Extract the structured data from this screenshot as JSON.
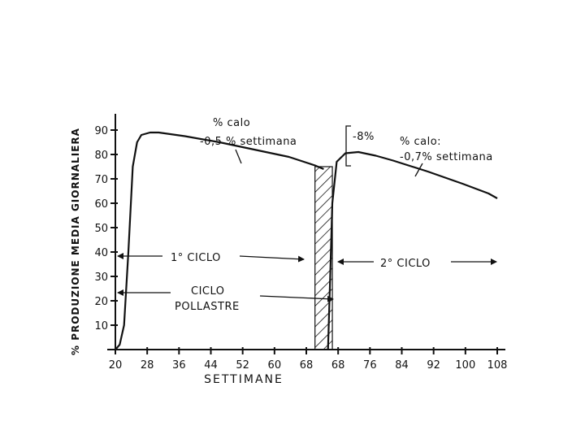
{
  "chart_data": {
    "type": "line",
    "title": "",
    "xlabel": "SETTIMANE",
    "ylabel": "% PRODUZIONE MEDIA GIORNALIERA",
    "xlim": [
      20,
      108
    ],
    "ylim": [
      0,
      100
    ],
    "x_ticks": [
      "20",
      "28",
      "36",
      "44",
      "52",
      "60",
      "68",
      "68",
      "76",
      "84",
      "92",
      "100",
      "108"
    ],
    "y_ticks": [
      "10",
      "20",
      "30",
      "40",
      "50",
      "60",
      "70",
      "80",
      "90"
    ],
    "series": [
      {
        "points": [
          [
            20,
            0
          ],
          [
            21,
            2
          ],
          [
            22,
            10
          ],
          [
            23,
            40
          ],
          [
            24,
            75
          ],
          [
            25,
            85
          ],
          [
            26,
            88
          ],
          [
            28,
            89
          ],
          [
            30,
            89
          ],
          [
            36,
            87.5
          ],
          [
            44,
            85
          ],
          [
            52,
            82
          ],
          [
            60,
            79
          ],
          [
            66,
            75.5
          ],
          [
            68,
            74
          ]
        ]
      },
      {
        "points": [
          [
            69,
            0
          ],
          [
            69.5,
            30
          ],
          [
            70,
            60
          ],
          [
            71,
            77
          ],
          [
            73,
            80.5
          ],
          [
            76,
            81
          ],
          [
            80,
            79.5
          ],
          [
            84,
            77.5
          ],
          [
            92,
            73
          ],
          [
            100,
            68
          ],
          [
            106,
            64
          ],
          [
            108,
            62
          ]
        ]
      }
    ],
    "shaded_interval": [
      66,
      70
    ],
    "annotations": {
      "first_decline": [
        "% calo",
        "-0,5 % settimana"
      ],
      "drop": "-8%",
      "second_decline": [
        "% calo:",
        "-0,7% settimana"
      ],
      "first_cycle": "1° CICLO",
      "pullet_cycle": [
        "CICLO",
        "POLLASTRE"
      ],
      "second_cycle": "2° CICLO"
    }
  }
}
